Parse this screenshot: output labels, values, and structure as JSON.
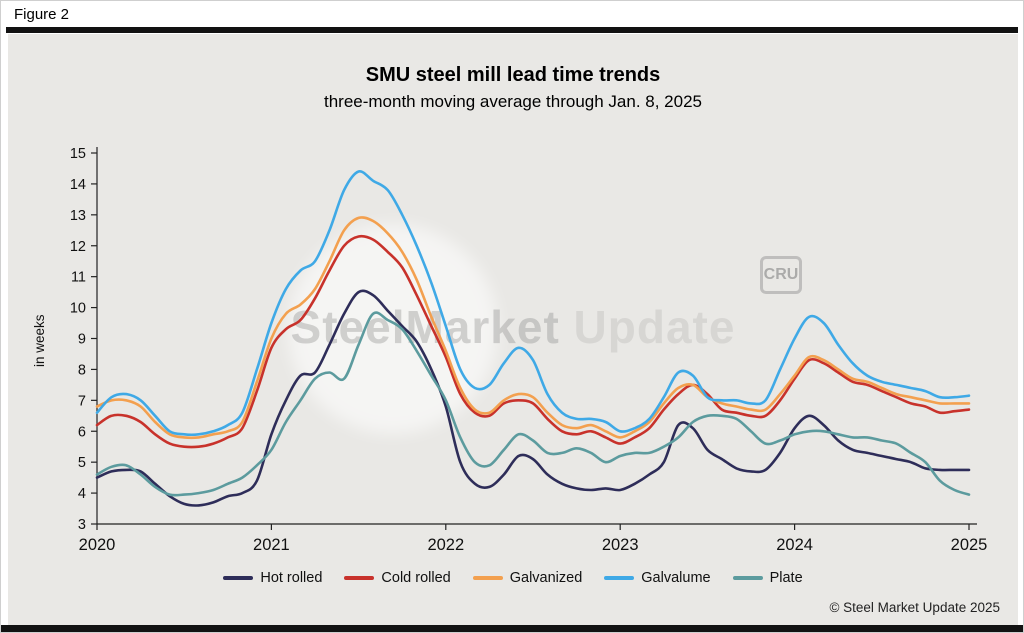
{
  "header": {
    "figure_label": "Figure 2"
  },
  "watermark": {
    "part1": "SteelMarket",
    "part2": "Update",
    "badge": "CRU"
  },
  "footer": {
    "copyright": "© Steel Market Update 2025"
  },
  "chart_data": {
    "type": "line",
    "title": "SMU steel mill lead time trends",
    "subtitle": "three-month moving average through Jan. 8, 2025",
    "xlabel": "",
    "ylabel": "in weeks",
    "xlim": [
      2020,
      2025
    ],
    "ylim": [
      3,
      15
    ],
    "xticks": [
      2020,
      2021,
      2022,
      2023,
      2024,
      2025
    ],
    "yticks": [
      3,
      4,
      5,
      6,
      7,
      8,
      9,
      10,
      11,
      12,
      13,
      14,
      15
    ],
    "grid": false,
    "legend_position": "bottom",
    "x_unit": "year (monthly samples)",
    "x": [
      2020.0,
      2020.083,
      2020.167,
      2020.25,
      2020.333,
      2020.417,
      2020.5,
      2020.583,
      2020.667,
      2020.75,
      2020.833,
      2020.917,
      2021.0,
      2021.083,
      2021.167,
      2021.25,
      2021.333,
      2021.417,
      2021.5,
      2021.583,
      2021.667,
      2021.75,
      2021.833,
      2021.917,
      2022.0,
      2022.083,
      2022.167,
      2022.25,
      2022.333,
      2022.417,
      2022.5,
      2022.583,
      2022.667,
      2022.75,
      2022.833,
      2022.917,
      2023.0,
      2023.083,
      2023.167,
      2023.25,
      2023.333,
      2023.417,
      2023.5,
      2023.583,
      2023.667,
      2023.75,
      2023.833,
      2023.917,
      2024.0,
      2024.083,
      2024.167,
      2024.25,
      2024.333,
      2024.417,
      2024.5,
      2024.583,
      2024.667,
      2024.75,
      2024.833,
      2024.917,
      2025.0
    ],
    "series": [
      {
        "name": "Hot rolled",
        "color": "#2e2d59",
        "values": [
          4.5,
          4.7,
          4.75,
          4.7,
          4.3,
          3.9,
          3.65,
          3.6,
          3.7,
          3.9,
          4.0,
          4.4,
          5.9,
          7.0,
          7.8,
          7.9,
          8.8,
          9.8,
          10.5,
          10.4,
          9.9,
          9.4,
          8.9,
          8.0,
          6.8,
          5.0,
          4.3,
          4.2,
          4.6,
          5.2,
          5.1,
          4.6,
          4.3,
          4.15,
          4.1,
          4.15,
          4.1,
          4.3,
          4.6,
          5.0,
          6.2,
          6.1,
          5.4,
          5.1,
          4.8,
          4.7,
          4.75,
          5.3,
          6.1,
          6.5,
          6.2,
          5.7,
          5.4,
          5.3,
          5.2,
          5.1,
          5.0,
          4.8,
          4.75,
          4.75,
          4.75
        ]
      },
      {
        "name": "Cold rolled",
        "color": "#c8322b",
        "values": [
          6.2,
          6.5,
          6.5,
          6.3,
          5.9,
          5.6,
          5.5,
          5.5,
          5.6,
          5.8,
          6.1,
          7.3,
          8.7,
          9.3,
          9.6,
          10.3,
          11.2,
          12.0,
          12.3,
          12.2,
          11.8,
          11.3,
          10.4,
          9.4,
          8.4,
          7.2,
          6.6,
          6.5,
          6.9,
          7.0,
          6.9,
          6.4,
          6.0,
          5.9,
          6.0,
          5.8,
          5.6,
          5.8,
          6.1,
          6.7,
          7.2,
          7.5,
          7.2,
          6.7,
          6.6,
          6.5,
          6.5,
          7.0,
          7.7,
          8.3,
          8.2,
          7.9,
          7.6,
          7.5,
          7.3,
          7.1,
          6.9,
          6.8,
          6.6,
          6.65,
          6.7
        ]
      },
      {
        "name": "Galvanized",
        "color": "#f3a04f",
        "values": [
          6.8,
          7.0,
          7.0,
          6.8,
          6.3,
          5.9,
          5.8,
          5.8,
          5.9,
          6.0,
          6.3,
          7.6,
          9.0,
          9.8,
          10.1,
          10.6,
          11.5,
          12.5,
          12.9,
          12.8,
          12.4,
          11.8,
          10.9,
          9.7,
          8.6,
          7.4,
          6.7,
          6.6,
          7.0,
          7.2,
          7.1,
          6.6,
          6.2,
          6.1,
          6.2,
          6.0,
          5.8,
          6.0,
          6.3,
          6.9,
          7.4,
          7.5,
          7.1,
          6.9,
          6.8,
          6.7,
          6.7,
          7.2,
          7.8,
          8.4,
          8.3,
          8.0,
          7.7,
          7.6,
          7.4,
          7.2,
          7.1,
          7.0,
          6.9,
          6.9,
          6.9
        ]
      },
      {
        "name": "Galvalume",
        "color": "#3fa9e6",
        "values": [
          6.6,
          7.1,
          7.2,
          7.0,
          6.5,
          6.0,
          5.9,
          5.9,
          6.0,
          6.2,
          6.6,
          8.0,
          9.5,
          10.6,
          11.2,
          11.5,
          12.5,
          13.8,
          14.4,
          14.1,
          13.8,
          13.0,
          12.0,
          10.8,
          9.4,
          8.0,
          7.4,
          7.5,
          8.2,
          8.7,
          8.3,
          7.2,
          6.6,
          6.4,
          6.4,
          6.3,
          6.0,
          6.1,
          6.4,
          7.1,
          7.9,
          7.8,
          7.1,
          7.0,
          7.0,
          6.9,
          7.0,
          8.0,
          9.0,
          9.7,
          9.5,
          8.8,
          8.2,
          7.8,
          7.6,
          7.5,
          7.4,
          7.3,
          7.1,
          7.1,
          7.15
        ]
      },
      {
        "name": "Plate",
        "color": "#5c9b9e",
        "values": [
          4.6,
          4.85,
          4.9,
          4.6,
          4.2,
          3.95,
          3.95,
          4.0,
          4.1,
          4.3,
          4.5,
          4.9,
          5.4,
          6.3,
          7.0,
          7.7,
          7.9,
          7.7,
          8.8,
          9.8,
          9.6,
          9.3,
          8.6,
          7.8,
          7.0,
          5.8,
          5.0,
          4.9,
          5.4,
          5.9,
          5.7,
          5.3,
          5.3,
          5.45,
          5.3,
          5.0,
          5.2,
          5.3,
          5.3,
          5.5,
          5.8,
          6.3,
          6.5,
          6.5,
          6.4,
          6.0,
          5.6,
          5.7,
          5.9,
          6.0,
          6.0,
          5.9,
          5.8,
          5.8,
          5.7,
          5.6,
          5.3,
          5.0,
          4.4,
          4.1,
          3.95
        ]
      }
    ]
  }
}
